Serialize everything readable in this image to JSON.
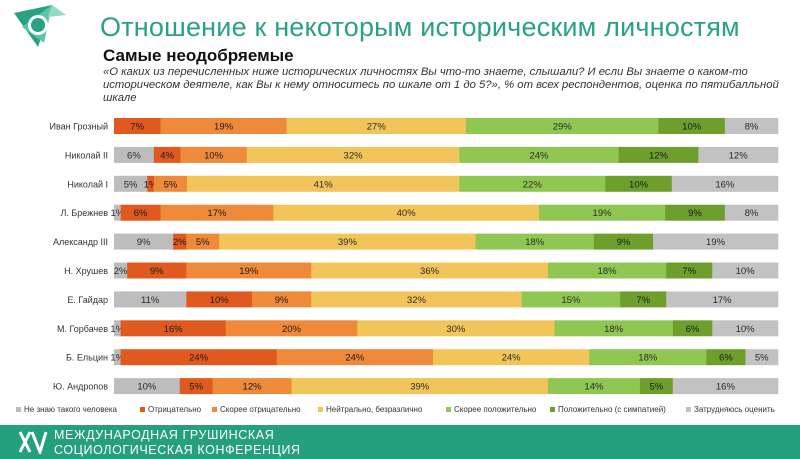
{
  "header": {
    "title": "Отношение к некоторым историческим личностям",
    "subtitle": "Самые неодобряемые",
    "question": "«О каких из перечисленных ниже исторических личностях Вы что-то знаете, слышали? И если Вы знаете о каком-то историческом деятеле, как Вы к нему относитесь по шкале от 1 до 5?», % от всех респондентов, оценка по пятибалльной шкале"
  },
  "footer": {
    "line1": "МЕЖДУНАРОДНАЯ ГРУШИНСКАЯ",
    "line2": "СОЦИОЛОГИЧЕСКАЯ КОНФЕРЕНЦИЯ"
  },
  "colors": {
    "brand": "#2aa184",
    "footer_bg": "#25a07c"
  },
  "chart_data": {
    "type": "bar",
    "orientation": "horizontal",
    "stacked": true,
    "percent_stacked": true,
    "legend_position": "bottom",
    "grid": false,
    "categories": [
      "Иван Грозный",
      "Николай II",
      "Николай I",
      "Л. Брежнев",
      "Александр III",
      "Н. Хрушев",
      "Е. Гайдар",
      "М. Горбачев",
      "Б. Ельцин",
      "Ю. Андропов"
    ],
    "series": [
      {
        "name": "Не знаю такого человека",
        "color": "#bdbdbd",
        "values": [
          0,
          6,
          5,
          1,
          9,
          2,
          11,
          1,
          1,
          10
        ]
      },
      {
        "name": "Отрицательно",
        "color": "#e05a1f",
        "values": [
          7,
          4,
          1,
          6,
          2,
          9,
          10,
          16,
          24,
          5
        ]
      },
      {
        "name": "Скорее отрицательно",
        "color": "#ef8a3b",
        "values": [
          19,
          10,
          5,
          17,
          5,
          19,
          9,
          20,
          24,
          12
        ]
      },
      {
        "name": "Нейтрально, безразлично",
        "color": "#f1c55a",
        "values": [
          27,
          32,
          41,
          40,
          39,
          36,
          32,
          30,
          24,
          39
        ]
      },
      {
        "name": "Скорее положительно",
        "color": "#8fc752",
        "values": [
          29,
          24,
          22,
          19,
          18,
          18,
          15,
          18,
          18,
          14
        ]
      },
      {
        "name": "Положительно (с симпатией)",
        "color": "#6e9f2d",
        "values": [
          10,
          12,
          10,
          9,
          9,
          7,
          7,
          6,
          6,
          5
        ]
      },
      {
        "name": "Затрудняюсь оценить",
        "color": "#c2c2c2",
        "values": [
          8,
          12,
          16,
          8,
          19,
          10,
          17,
          10,
          5,
          16
        ]
      }
    ],
    "data_labels": [
      [
        "",
        "6%",
        "5%",
        "1%",
        "9%",
        "2%",
        "11%",
        "1%",
        "1%",
        "10%"
      ],
      [
        "7%",
        "4%",
        "1%",
        "6%",
        "2%",
        "9%",
        "10%",
        "16%",
        "24%",
        "5%"
      ],
      [
        "19%",
        "10%",
        "5%",
        "17%",
        "5%",
        "19%",
        "9%",
        "20%",
        "24%",
        "12%"
      ],
      [
        "27%",
        "32%",
        "41%",
        "40%",
        "39%",
        "36%",
        "32%",
        "30%",
        "24%",
        "39%"
      ],
      [
        "29%",
        "24%",
        "22%",
        "19%",
        "18%",
        "18%",
        "15%",
        "18%",
        "18%",
        "14%"
      ],
      [
        "10%",
        "12%",
        "10%",
        "9%",
        "9%",
        "7%",
        "7%",
        "6%",
        "6%",
        "5%"
      ],
      [
        "8%",
        "12%",
        "16%",
        "8%",
        "19%",
        "10%",
        "17%",
        "10%",
        "5%",
        "16%"
      ]
    ]
  }
}
